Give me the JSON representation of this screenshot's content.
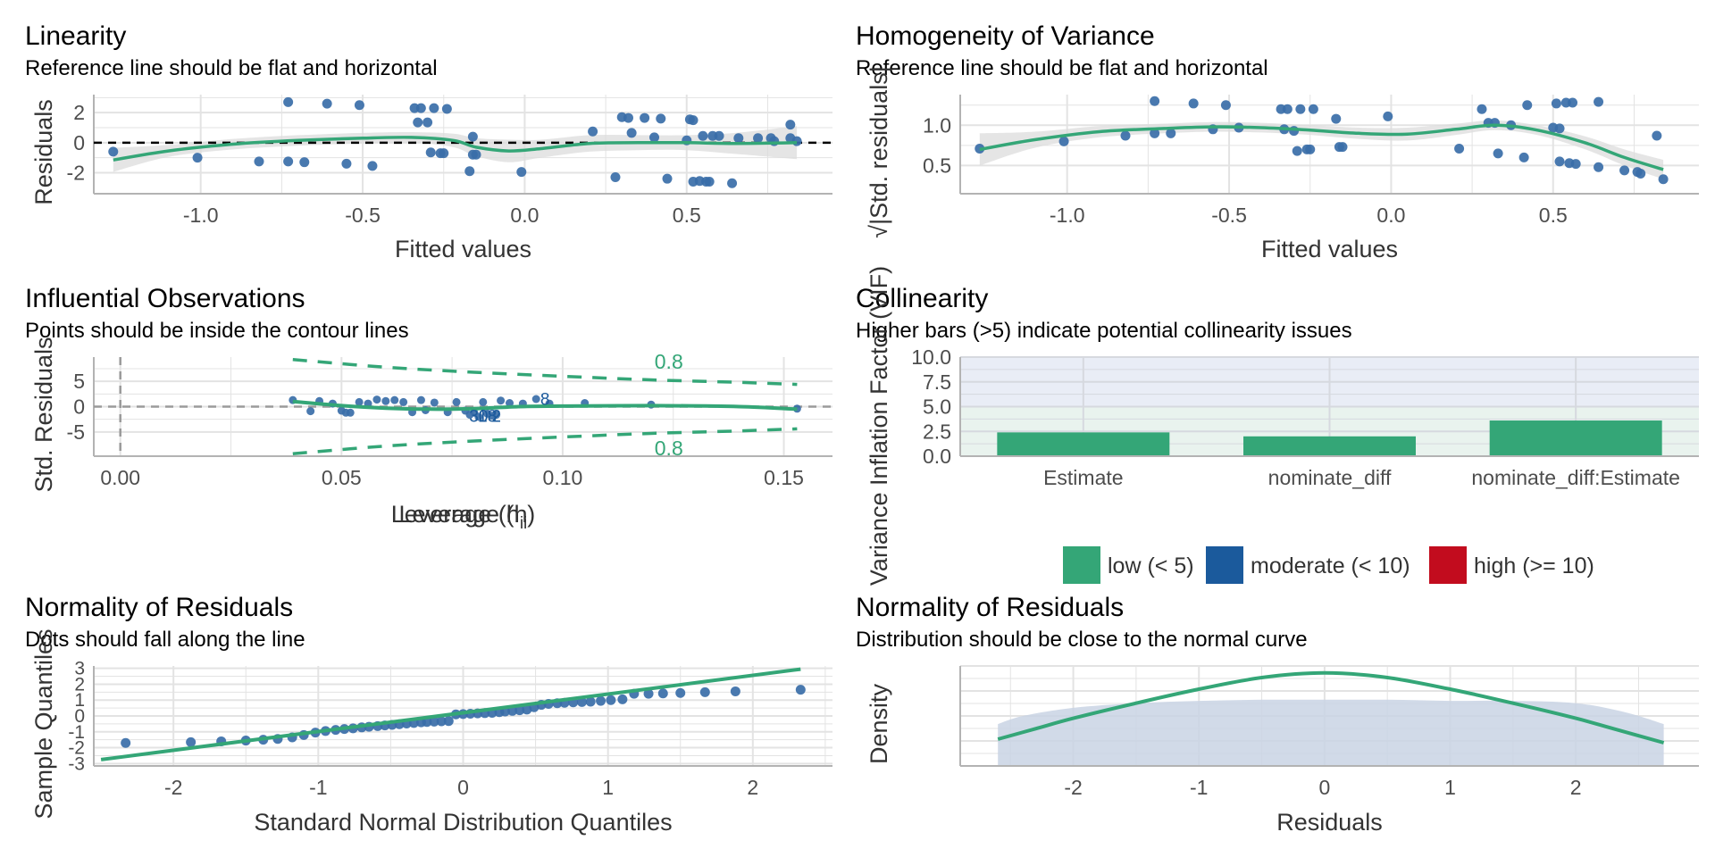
{
  "colors": {
    "point": "#3a6ea8",
    "curve": "#34a677",
    "band": "#dcdcdc",
    "grid": "#e3e3e3",
    "axis": "#b3b3b3",
    "refline": "#000000",
    "low": "#34a677",
    "moderate": "#1b5a9c",
    "high": "#c20c1e",
    "hist": "#c9d4e4"
  },
  "chart_data": [
    {
      "id": "linearity",
      "type": "scatter",
      "title": "Linearity",
      "subtitle": "Reference line should be flat and horizontal",
      "xlabel": "Fitted values",
      "ylabel": "Residuals",
      "xlim": [
        -1.33,
        0.95
      ],
      "ylim": [
        -3.4,
        3.2
      ],
      "xticks": [
        -1.0,
        -0.5,
        0.0,
        0.5
      ],
      "xtick_labels": [
        "-1.0",
        "-0.5",
        "0.0",
        "0.5"
      ],
      "yticks": [
        -2,
        0,
        2
      ],
      "ytick_labels": [
        "-2",
        "0",
        "2"
      ],
      "reference_y": 0,
      "points": [
        [
          -1.27,
          -0.6
        ],
        [
          -1.01,
          -1.0
        ],
        [
          -0.82,
          -1.25
        ],
        [
          -0.73,
          2.7
        ],
        [
          -0.73,
          -1.25
        ],
        [
          -0.68,
          -1.3
        ],
        [
          -0.61,
          2.6
        ],
        [
          -0.55,
          -1.4
        ],
        [
          -0.51,
          2.5
        ],
        [
          -0.47,
          -1.55
        ],
        [
          -0.34,
          2.3
        ],
        [
          -0.33,
          1.35
        ],
        [
          -0.32,
          2.3
        ],
        [
          -0.3,
          1.35
        ],
        [
          -0.29,
          -0.65
        ],
        [
          -0.28,
          2.3
        ],
        [
          -0.26,
          -0.7
        ],
        [
          -0.25,
          -0.7
        ],
        [
          -0.24,
          2.25
        ],
        [
          -0.17,
          -1.9
        ],
        [
          -0.16,
          -0.8
        ],
        [
          -0.16,
          0.4
        ],
        [
          -0.15,
          -0.8
        ],
        [
          -0.01,
          -1.95
        ],
        [
          0.21,
          0.75
        ],
        [
          0.28,
          -2.3
        ],
        [
          0.3,
          1.7
        ],
        [
          0.32,
          1.65
        ],
        [
          0.33,
          0.65
        ],
        [
          0.37,
          1.65
        ],
        [
          0.4,
          0.35
        ],
        [
          0.42,
          1.6
        ],
        [
          0.44,
          -2.4
        ],
        [
          0.5,
          0.15
        ],
        [
          0.51,
          1.55
        ],
        [
          0.52,
          -2.6
        ],
        [
          0.52,
          1.5
        ],
        [
          0.54,
          -2.55
        ],
        [
          0.55,
          0.45
        ],
        [
          0.56,
          -2.6
        ],
        [
          0.57,
          -2.6
        ],
        [
          0.58,
          0.45
        ],
        [
          0.6,
          0.45
        ],
        [
          0.64,
          -2.7
        ],
        [
          0.66,
          0.3
        ],
        [
          0.72,
          0.3
        ],
        [
          0.76,
          0.3
        ],
        [
          0.77,
          0.1
        ],
        [
          0.82,
          0.3
        ],
        [
          0.82,
          1.2
        ],
        [
          0.84,
          0.1
        ]
      ],
      "curve": [
        [
          -1.27,
          -1.15
        ],
        [
          -1.1,
          -0.55
        ],
        [
          -0.9,
          -0.1
        ],
        [
          -0.7,
          0.15
        ],
        [
          -0.5,
          0.3
        ],
        [
          -0.35,
          0.35
        ],
        [
          -0.22,
          0.15
        ],
        [
          -0.15,
          -0.3
        ],
        [
          -0.05,
          -0.55
        ],
        [
          0.05,
          -0.4
        ],
        [
          0.2,
          -0.05
        ],
        [
          0.35,
          0.0
        ],
        [
          0.5,
          0.0
        ],
        [
          0.65,
          -0.05
        ],
        [
          0.84,
          0.0
        ]
      ],
      "band_half_width": [
        0.8,
        0.4,
        0.35,
        0.35,
        0.35,
        0.35,
        0.45,
        0.6,
        0.75,
        0.6,
        0.55,
        0.5,
        0.5,
        0.7,
        1.1
      ]
    },
    {
      "id": "homogeneity",
      "type": "scatter",
      "title": "Homogeneity of Variance",
      "subtitle": "Reference line should be flat and horizontal",
      "xlabel": "Fitted values",
      "ylabel": "√|Std. residuals|",
      "xlim": [
        -1.33,
        0.95
      ],
      "ylim": [
        0.15,
        1.38
      ],
      "xticks": [
        -1.0,
        -0.5,
        0.0,
        0.5
      ],
      "xtick_labels": [
        "-1.0",
        "-0.5",
        "0.0",
        "0.5"
      ],
      "yticks": [
        0.5,
        1.0
      ],
      "ytick_labels": [
        "0.5",
        "1.0"
      ],
      "points": [
        [
          -1.27,
          0.71
        ],
        [
          -1.01,
          0.8
        ],
        [
          -0.82,
          0.87
        ],
        [
          -0.73,
          1.3
        ],
        [
          -0.73,
          0.9
        ],
        [
          -0.68,
          0.9
        ],
        [
          -0.61,
          1.27
        ],
        [
          -0.55,
          0.95
        ],
        [
          -0.51,
          1.25
        ],
        [
          -0.47,
          0.97
        ],
        [
          -0.34,
          1.2
        ],
        [
          -0.33,
          0.95
        ],
        [
          -0.32,
          1.2
        ],
        [
          -0.3,
          0.93
        ],
        [
          -0.29,
          0.68
        ],
        [
          -0.28,
          1.2
        ],
        [
          -0.26,
          0.7
        ],
        [
          -0.25,
          0.7
        ],
        [
          -0.24,
          1.2
        ],
        [
          -0.17,
          1.08
        ],
        [
          -0.16,
          0.73
        ],
        [
          -0.15,
          0.73
        ],
        [
          -0.01,
          1.11
        ],
        [
          0.21,
          0.71
        ],
        [
          0.28,
          1.2
        ],
        [
          0.3,
          1.03
        ],
        [
          0.32,
          1.03
        ],
        [
          0.33,
          0.65
        ],
        [
          0.37,
          1.0
        ],
        [
          0.41,
          0.6
        ],
        [
          0.42,
          1.25
        ],
        [
          0.5,
          0.97
        ],
        [
          0.51,
          1.27
        ],
        [
          0.52,
          0.55
        ],
        [
          0.52,
          0.96
        ],
        [
          0.54,
          1.28
        ],
        [
          0.55,
          0.53
        ],
        [
          0.56,
          1.28
        ],
        [
          0.57,
          0.52
        ],
        [
          0.64,
          1.29
        ],
        [
          0.64,
          0.48
        ],
        [
          0.72,
          0.44
        ],
        [
          0.76,
          0.42
        ],
        [
          0.77,
          0.4
        ],
        [
          0.82,
          0.87
        ],
        [
          0.84,
          0.33
        ]
      ],
      "curve": [
        [
          -1.27,
          0.7
        ],
        [
          -1.1,
          0.82
        ],
        [
          -0.9,
          0.92
        ],
        [
          -0.7,
          0.96
        ],
        [
          -0.55,
          0.98
        ],
        [
          -0.4,
          0.97
        ],
        [
          -0.25,
          0.94
        ],
        [
          -0.1,
          0.9
        ],
        [
          0.05,
          0.89
        ],
        [
          0.2,
          0.95
        ],
        [
          0.32,
          1.0
        ],
        [
          0.45,
          0.94
        ],
        [
          0.6,
          0.78
        ],
        [
          0.72,
          0.6
        ],
        [
          0.84,
          0.45
        ]
      ],
      "band_half_width": [
        0.2,
        0.1,
        0.07,
        0.06,
        0.06,
        0.06,
        0.06,
        0.07,
        0.08,
        0.07,
        0.06,
        0.06,
        0.08,
        0.1,
        0.12
      ]
    },
    {
      "id": "influential",
      "type": "scatter",
      "title": "Influential Observations",
      "subtitle": "Points should be inside the contour lines",
      "xlabel": "Leverage (h",
      "xlabel_sub": "ii",
      "xlabel_end": ")",
      "ylabel": "Std. Residuals",
      "xlim": [
        -0.006,
        0.161
      ],
      "ylim": [
        -9.8,
        9.8
      ],
      "xticks": [
        0.0,
        0.05,
        0.1,
        0.15
      ],
      "xtick_labels": [
        "0.00",
        "0.05",
        "0.10",
        "0.15"
      ],
      "yticks": [
        -5,
        0,
        5
      ],
      "ytick_labels": [
        "-5",
        "0",
        "5"
      ],
      "contour_label": "0.8",
      "contour_upper": [
        [
          0.039,
          9.3
        ],
        [
          0.06,
          7.8
        ],
        [
          0.08,
          6.8
        ],
        [
          0.1,
          6.0
        ],
        [
          0.12,
          5.3
        ],
        [
          0.14,
          4.8
        ],
        [
          0.153,
          4.4
        ]
      ],
      "contour_lower": [
        [
          0.039,
          -9.3
        ],
        [
          0.06,
          -7.8
        ],
        [
          0.08,
          -6.8
        ],
        [
          0.1,
          -6.0
        ],
        [
          0.12,
          -5.3
        ],
        [
          0.14,
          -4.8
        ],
        [
          0.153,
          -4.4
        ]
      ],
      "labels": [
        {
          "x": 0.096,
          "y": 1.6,
          "text": "8"
        },
        {
          "x": 0.081,
          "y": -1.8,
          "text": "30"
        },
        {
          "x": 0.083,
          "y": -1.8,
          "text": "18"
        },
        {
          "x": 0.085,
          "y": -1.8,
          "text": "2"
        }
      ],
      "points": [
        [
          0.039,
          1.3
        ],
        [
          0.043,
          -0.9
        ],
        [
          0.045,
          1.1
        ],
        [
          0.048,
          0.6
        ],
        [
          0.05,
          -0.8
        ],
        [
          0.051,
          -1.2
        ],
        [
          0.052,
          -1.2
        ],
        [
          0.054,
          0.9
        ],
        [
          0.056,
          0.6
        ],
        [
          0.058,
          1.4
        ],
        [
          0.06,
          1.1
        ],
        [
          0.062,
          1.3
        ],
        [
          0.064,
          0.9
        ],
        [
          0.066,
          -1.1
        ],
        [
          0.068,
          1.3
        ],
        [
          0.069,
          -0.7
        ],
        [
          0.071,
          0.8
        ],
        [
          0.074,
          -1.1
        ],
        [
          0.076,
          0.9
        ],
        [
          0.078,
          -0.8
        ],
        [
          0.079,
          -1.6
        ],
        [
          0.08,
          -1.2
        ],
        [
          0.081,
          -2.0
        ],
        [
          0.082,
          0.9
        ],
        [
          0.083,
          -1.4
        ],
        [
          0.084,
          -1.8
        ],
        [
          0.085,
          -1.6
        ],
        [
          0.086,
          1.2
        ],
        [
          0.088,
          0.7
        ],
        [
          0.091,
          0.6
        ],
        [
          0.094,
          1.5
        ],
        [
          0.097,
          0.6
        ],
        [
          0.105,
          0.7
        ],
        [
          0.12,
          0.4
        ],
        [
          0.153,
          -0.4
        ]
      ],
      "curve": [
        [
          0.039,
          1.0
        ],
        [
          0.05,
          0.2
        ],
        [
          0.06,
          -0.3
        ],
        [
          0.07,
          -0.5
        ],
        [
          0.08,
          -0.4
        ],
        [
          0.09,
          0.0
        ],
        [
          0.1,
          0.1
        ],
        [
          0.12,
          0.2
        ],
        [
          0.14,
          0.0
        ],
        [
          0.153,
          -0.5
        ]
      ]
    },
    {
      "id": "collinearity",
      "type": "bar",
      "title": "Collinearity",
      "subtitle": "Higher bars (>5) indicate potential collinearity issues",
      "xlabel": "",
      "ylabel": "Variance Inflation Factor (VIF)",
      "ylim": [
        0,
        10
      ],
      "yticks": [
        0,
        2.5,
        5,
        7.5,
        10
      ],
      "ytick_labels": [
        "0.0",
        "2.5",
        "5.0",
        "7.5",
        "10.0"
      ],
      "categories": [
        "Estimate",
        "nominate_diff",
        "nominate_diff:Estimate"
      ],
      "values": [
        2.4,
        2.0,
        3.6
      ],
      "bar_class": [
        "low",
        "low",
        "low"
      ],
      "legend": [
        {
          "key": "low",
          "label": "low (< 5)"
        },
        {
          "key": "moderate",
          "label": "moderate (< 10)"
        },
        {
          "key": "high",
          "label": "high (>= 10)"
        }
      ],
      "legend_position": "bottom"
    },
    {
      "id": "qq",
      "type": "scatter",
      "title": "Normality of Residuals",
      "subtitle": "Dots should fall along the line",
      "xlabel": "Standard Normal Distribution Quantiles",
      "ylabel": "Sample Quantiles",
      "xlim": [
        -2.55,
        2.55
      ],
      "ylim": [
        -3.15,
        3.15
      ],
      "xticks": [
        -2,
        -1,
        0,
        1,
        2
      ],
      "xtick_labels": [
        "-2",
        "-1",
        "0",
        "1",
        "2"
      ],
      "yticks": [
        -3,
        -2,
        -1,
        0,
        1,
        2,
        3
      ],
      "ytick_labels": [
        "-3",
        "-2",
        "-1",
        "0",
        "1",
        "2",
        "3"
      ],
      "reference_line": [
        [
          -2.5,
          -2.75
        ],
        [
          2.33,
          2.95
        ]
      ],
      "points": [
        [
          -2.33,
          -1.7
        ],
        [
          -1.88,
          -1.65
        ],
        [
          -1.67,
          -1.6
        ],
        [
          -1.5,
          -1.55
        ],
        [
          -1.38,
          -1.5
        ],
        [
          -1.28,
          -1.45
        ],
        [
          -1.18,
          -1.35
        ],
        [
          -1.1,
          -1.2
        ],
        [
          -1.02,
          -1.05
        ],
        [
          -0.95,
          -0.95
        ],
        [
          -0.88,
          -0.88
        ],
        [
          -0.82,
          -0.82
        ],
        [
          -0.76,
          -0.78
        ],
        [
          -0.7,
          -0.72
        ],
        [
          -0.65,
          -0.68
        ],
        [
          -0.59,
          -0.64
        ],
        [
          -0.54,
          -0.6
        ],
        [
          -0.49,
          -0.56
        ],
        [
          -0.44,
          -0.52
        ],
        [
          -0.39,
          -0.48
        ],
        [
          -0.34,
          -0.44
        ],
        [
          -0.29,
          -0.4
        ],
        [
          -0.25,
          -0.38
        ],
        [
          -0.2,
          -0.36
        ],
        [
          -0.15,
          -0.34
        ],
        [
          -0.1,
          -0.32
        ],
        [
          -0.05,
          0.1
        ],
        [
          0.0,
          0.12
        ],
        [
          0.05,
          0.14
        ],
        [
          0.1,
          0.16
        ],
        [
          0.15,
          0.18
        ],
        [
          0.2,
          0.2
        ],
        [
          0.25,
          0.24
        ],
        [
          0.29,
          0.28
        ],
        [
          0.34,
          0.32
        ],
        [
          0.39,
          0.36
        ],
        [
          0.44,
          0.4
        ],
        [
          0.49,
          0.55
        ],
        [
          0.54,
          0.7
        ],
        [
          0.59,
          0.76
        ],
        [
          0.65,
          0.8
        ],
        [
          0.7,
          0.83
        ],
        [
          0.76,
          0.86
        ],
        [
          0.82,
          0.88
        ],
        [
          0.88,
          0.9
        ],
        [
          0.95,
          0.95
        ],
        [
          1.02,
          1.0
        ],
        [
          1.1,
          1.05
        ],
        [
          1.18,
          1.4
        ],
        [
          1.28,
          1.4
        ],
        [
          1.38,
          1.42
        ],
        [
          1.5,
          1.45
        ],
        [
          1.67,
          1.5
        ],
        [
          1.88,
          1.55
        ],
        [
          2.33,
          1.65
        ]
      ]
    },
    {
      "id": "density",
      "type": "area",
      "title": "Normality of Residuals",
      "subtitle": "Distribution should be close to the normal curve",
      "xlabel": "Residuals",
      "ylabel": "Density",
      "xlim": [
        -2.9,
        2.98
      ],
      "ylim": [
        0,
        0.43
      ],
      "xticks": [
        -2,
        -1,
        0,
        1,
        2
      ],
      "xtick_labels": [
        "-2",
        "-1",
        "0",
        "1",
        "2"
      ],
      "density": [
        [
          -2.6,
          0.18
        ],
        [
          -2.4,
          0.215
        ],
        [
          -2.0,
          0.25
        ],
        [
          -1.5,
          0.27
        ],
        [
          -1.0,
          0.28
        ],
        [
          -0.5,
          0.285
        ],
        [
          0.0,
          0.285
        ],
        [
          0.5,
          0.285
        ],
        [
          1.0,
          0.28
        ],
        [
          1.5,
          0.28
        ],
        [
          2.0,
          0.27
        ],
        [
          2.4,
          0.23
        ],
        [
          2.7,
          0.18
        ]
      ],
      "normal_curve": [
        [
          -2.6,
          0.115
        ],
        [
          -2.3,
          0.16
        ],
        [
          -2.0,
          0.205
        ],
        [
          -1.5,
          0.27
        ],
        [
          -1.0,
          0.33
        ],
        [
          -0.5,
          0.38
        ],
        [
          0.0,
          0.4
        ],
        [
          0.5,
          0.38
        ],
        [
          1.0,
          0.33
        ],
        [
          1.5,
          0.27
        ],
        [
          2.0,
          0.205
        ],
        [
          2.3,
          0.16
        ],
        [
          2.7,
          0.1
        ]
      ]
    }
  ]
}
